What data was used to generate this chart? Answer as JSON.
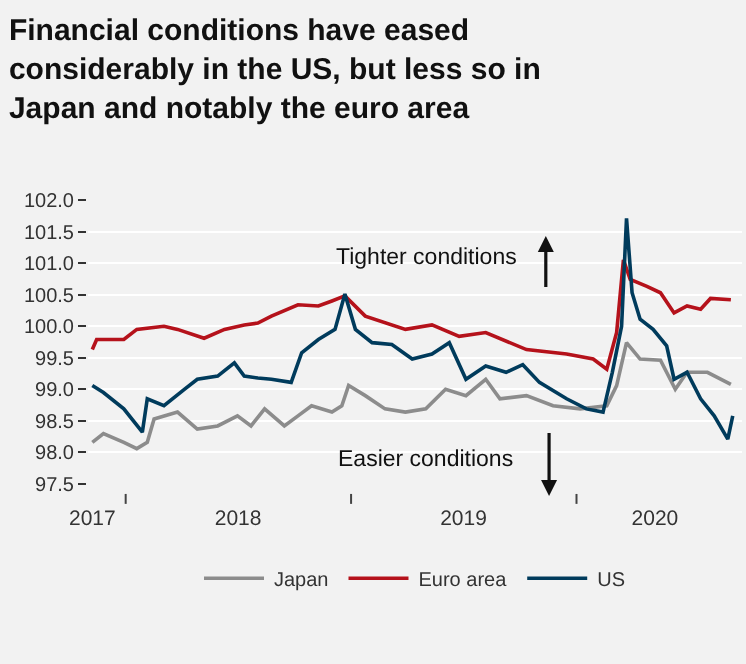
{
  "chart_data": {
    "type": "line",
    "title": "Financial conditions have eased\nconsiderably in the US, but less so in\nJapan and notably the euro area",
    "annotations": [
      "Tighter conditions",
      "Easier conditions"
    ],
    "xlim": [
      "2017-11-01",
      "2020-09-25"
    ],
    "xticks": [
      {
        "value": "2017-11-08",
        "label": "2017"
      },
      {
        "value": "2018-01-01",
        "label": null
      },
      {
        "value": "2018-07-02",
        "label": "2018"
      },
      {
        "value": "2019-01-01",
        "label": null
      },
      {
        "value": "2019-07-02",
        "label": "2019"
      },
      {
        "value": "2020-01-01",
        "label": null
      },
      {
        "value": "2020-05-07",
        "label": "2020"
      }
    ],
    "ylim": [
      97.5,
      102
    ],
    "yticks": [
      {
        "value": 97.5,
        "label": "97.5"
      },
      {
        "value": 98,
        "label": "98.0"
      },
      {
        "value": 98.5,
        "label": "98.5"
      },
      {
        "value": 99,
        "label": "99.0"
      },
      {
        "value": 99.5,
        "label": "99.5"
      },
      {
        "value": 100,
        "label": "100.0"
      },
      {
        "value": 100.5,
        "label": "100.5"
      },
      {
        "value": 101,
        "label": "101.0"
      },
      {
        "value": 101.5,
        "label": "101.5"
      },
      {
        "value": 102,
        "label": "102.0"
      }
    ],
    "grid": "y",
    "legend": "bottom",
    "marker": "none",
    "line_style": "solid",
    "series": [
      {
        "name": "Japan",
        "color": "#8c8c8c",
        "x": [
          "2017-11-08",
          "2017-11-26",
          "2017-12-29",
          "2018-01-19",
          "2018-02-05",
          "2018-02-16",
          "2018-03-26",
          "2018-04-27",
          "2018-05-30",
          "2018-07-01",
          "2018-07-23",
          "2018-08-14",
          "2018-09-15",
          "2018-10-07",
          "2018-10-29",
          "2018-12-01",
          "2018-12-17",
          "2018-12-28",
          "2019-01-24",
          "2019-02-25",
          "2019-03-30",
          "2019-05-02",
          "2019-06-03",
          "2019-07-06",
          "2019-08-07",
          "2019-08-30",
          "2019-10-12",
          "2019-11-24",
          "2020-01-07",
          "2020-02-19",
          "2020-03-06",
          "2020-03-22",
          "2020-04-13",
          "2020-05-16",
          "2020-06-09",
          "2020-06-28",
          "2020-07-31",
          "2020-09-07"
        ],
        "values": [
          98.16,
          98.3,
          98.16,
          98.06,
          98.16,
          98.53,
          98.64,
          98.37,
          98.42,
          98.58,
          98.42,
          98.69,
          98.42,
          98.58,
          98.74,
          98.64,
          98.74,
          99.06,
          98.9,
          98.69,
          98.64,
          98.69,
          99.0,
          98.9,
          99.16,
          98.85,
          98.9,
          98.74,
          98.69,
          98.74,
          99.06,
          99.74,
          99.48,
          99.46,
          99.0,
          99.27,
          99.27,
          99.08
        ]
      },
      {
        "name": "Euro area",
        "color": "#b5121b",
        "x": [
          "2017-11-08",
          "2017-11-15",
          "2017-12-29",
          "2018-01-19",
          "2018-03-04",
          "2018-03-26",
          "2018-05-08",
          "2018-06-10",
          "2018-07-12",
          "2018-08-03",
          "2018-08-25",
          "2018-10-07",
          "2018-11-09",
          "2018-12-01",
          "2018-12-22",
          "2019-01-24",
          "2019-03-30",
          "2019-05-12",
          "2019-06-25",
          "2019-08-07",
          "2019-10-12",
          "2019-12-16",
          "2020-01-28",
          "2020-02-19",
          "2020-03-06",
          "2020-03-17",
          "2020-03-28",
          "2020-04-24",
          "2020-05-16",
          "2020-06-07",
          "2020-06-28",
          "2020-07-20",
          "2020-08-05",
          "2020-09-07"
        ],
        "values": [
          99.63,
          99.79,
          99.79,
          99.95,
          100.0,
          99.95,
          99.81,
          99.95,
          100.02,
          100.05,
          100.16,
          100.34,
          100.32,
          100.4,
          100.48,
          100.16,
          99.95,
          100.02,
          99.84,
          99.9,
          99.63,
          99.56,
          99.48,
          99.32,
          99.9,
          101.05,
          100.74,
          100.63,
          100.53,
          100.21,
          100.32,
          100.27,
          100.44,
          100.42
        ]
      },
      {
        "name": "US",
        "color": "#003b5c",
        "x": [
          "2017-11-08",
          "2017-11-26",
          "2017-12-29",
          "2018-01-28",
          "2018-02-05",
          "2018-03-04",
          "2018-04-06",
          "2018-04-27",
          "2018-05-30",
          "2018-06-26",
          "2018-07-12",
          "2018-08-03",
          "2018-08-25",
          "2018-09-26",
          "2018-10-13",
          "2018-11-09",
          "2018-12-06",
          "2018-12-22",
          "2019-01-08",
          "2019-02-04",
          "2019-03-08",
          "2019-04-10",
          "2019-05-12",
          "2019-06-09",
          "2019-07-06",
          "2019-08-07",
          "2019-09-09",
          "2019-10-06",
          "2019-11-02",
          "2019-12-16",
          "2020-01-17",
          "2020-02-13",
          "2020-02-28",
          "2020-03-14",
          "2020-03-22",
          "2020-03-31",
          "2020-04-13",
          "2020-05-04",
          "2020-05-26",
          "2020-06-07",
          "2020-06-28",
          "2020-07-20",
          "2020-08-11",
          "2020-09-02",
          "2020-09-10"
        ],
        "values": [
          99.06,
          98.95,
          98.69,
          98.32,
          98.85,
          98.74,
          99.0,
          99.16,
          99.21,
          99.42,
          99.21,
          99.18,
          99.16,
          99.11,
          99.58,
          99.79,
          99.95,
          100.51,
          99.95,
          99.74,
          99.71,
          99.48,
          99.56,
          99.74,
          99.16,
          99.37,
          99.27,
          99.39,
          99.11,
          98.85,
          98.69,
          98.64,
          99.27,
          100.0,
          101.71,
          100.53,
          100.11,
          99.95,
          99.69,
          99.16,
          99.27,
          98.85,
          98.58,
          98.21,
          98.58
        ]
      }
    ]
  }
}
